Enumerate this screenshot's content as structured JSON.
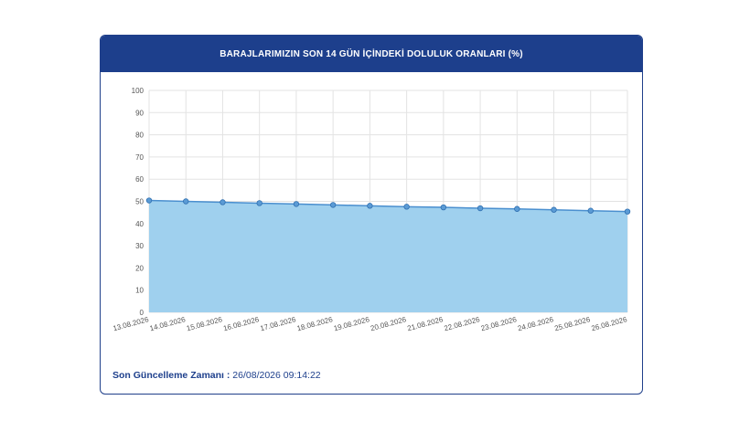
{
  "header": {
    "title": "BARAJLARIMIZIN SON 14 GÜN İÇİNDEKİ DOLULUK ORANLARI (%)"
  },
  "footer": {
    "label": "Son Güncelleme Zamanı :",
    "value": "26/08/2026 09:14:22"
  },
  "colors": {
    "header_bg": "#1d3f8c",
    "area_fill": "#9fd0ee",
    "line": "#4a8fcf",
    "marker": "#5b9bd5"
  },
  "chart_data": {
    "type": "area",
    "title": "BARAJLARIMIZIN SON 14 GÜN İÇİNDEKİ DOLULUK ORANLARI (%)",
    "xlabel": "",
    "ylabel": "",
    "ylim": [
      0,
      100
    ],
    "yticks": [
      0,
      10,
      20,
      30,
      40,
      50,
      60,
      70,
      80,
      90,
      100
    ],
    "grid": true,
    "legend": "none",
    "categories": [
      "13.08.2026",
      "14.08.2026",
      "15.08.2026",
      "16.08.2026",
      "17.08.2026",
      "18.08.2026",
      "19.08.2026",
      "20.08.2026",
      "21.08.2026",
      "22.08.2026",
      "23.08.2026",
      "24.08.2026",
      "25.08.2026",
      "26.08.2026"
    ],
    "values": [
      50.4,
      50.0,
      49.6,
      49.2,
      48.8,
      48.4,
      48.0,
      47.6,
      47.3,
      46.9,
      46.6,
      46.2,
      45.8,
      45.4
    ]
  }
}
